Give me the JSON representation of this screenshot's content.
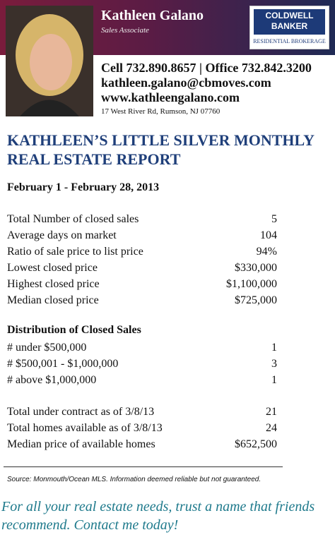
{
  "header": {
    "name": "Kathleen Galano",
    "role": "Sales Associate",
    "logo": {
      "line1": "COLDWELL",
      "line2": "BANKER",
      "sub": "RESIDENTIAL BROKERAGE"
    },
    "phones": "Cell 732.890.8657 | Office 732.842.3200",
    "email": "kathleen.galano@cbmoves.com",
    "website": "www.kathleengalano.com",
    "address": "17 West River Rd, Rumson, NJ 07760"
  },
  "report": {
    "title_lines": [
      "KATHLEEN’S LITTLE SILVER MONTHLY",
      "REAL ESTATE REPORT"
    ],
    "period": "February 1 - February 28, 2013",
    "stats": [
      [
        "Total Number of closed sales",
        "5"
      ],
      [
        "Average days on market",
        "104"
      ],
      [
        "Ratio of sale price to list price",
        "94%"
      ],
      [
        "Lowest closed price",
        "$330,000"
      ],
      [
        "Highest closed price",
        "$1,100,000"
      ],
      [
        "Median closed price",
        "$725,000"
      ]
    ],
    "distribution": {
      "heading": "Distribution of Closed Sales",
      "rows": [
        [
          "# under $500,000",
          "1"
        ],
        [
          "# $500,001 - $1,000,000",
          "3"
        ],
        [
          "# above $1,000,000",
          "1"
        ]
      ]
    },
    "inventory": [
      [
        "Total under contract as of 3/8/13",
        "21"
      ],
      [
        "Total homes available as of 3/8/13",
        "24"
      ],
      [
        "Median price of available homes",
        "$652,500"
      ]
    ]
  },
  "source": "Source: Monmouth/Ocean MLS. Information deemed reliable but not guaranteed.",
  "footer_lines": [
    "For all your real estate needs, trust a name that friends",
    "recommend. Contact me today!"
  ]
}
